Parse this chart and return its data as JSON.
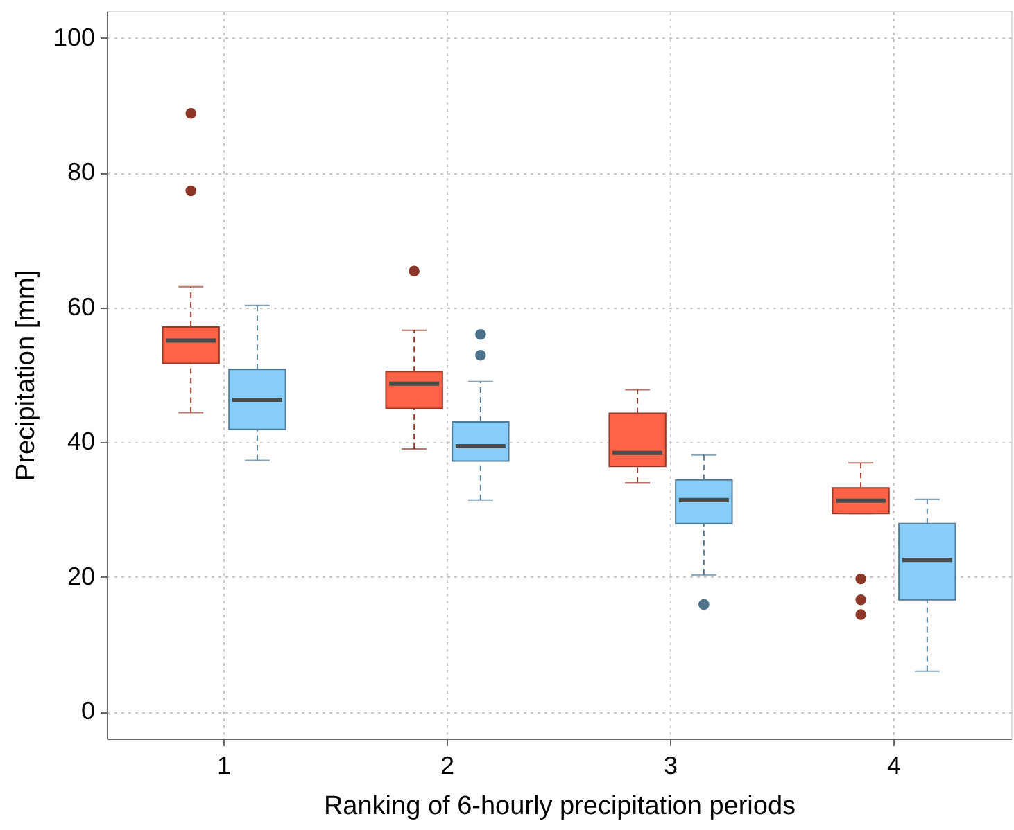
{
  "chart_data": {
    "type": "box",
    "xlabel": "Ranking of 6-hourly precipitation periods",
    "ylabel": "Precipitation [mm]",
    "categories": [
      "1",
      "2",
      "3",
      "4"
    ],
    "series": [
      {
        "color": "#ff6347",
        "boxes": [
          {
            "low": 44.4,
            "q1": 51.7,
            "median": 55.1,
            "q3": 57.1,
            "high": 63.1,
            "outliers": [
              88.8,
              77.3
            ]
          },
          {
            "low": 39.0,
            "q1": 45.0,
            "median": 48.7,
            "q3": 50.5,
            "high": 56.6,
            "outliers": [
              65.4
            ]
          },
          {
            "low": 34.0,
            "q1": 36.4,
            "median": 38.4,
            "q3": 44.3,
            "high": 47.8
          },
          {
            "low": 29.4,
            "q1": 29.4,
            "median": 31.3,
            "q3": 33.2,
            "high": 36.9,
            "outliers": [
              19.7,
              16.6,
              14.4
            ]
          }
        ]
      },
      {
        "color": "#87cefa",
        "boxes": [
          {
            "low": 37.3,
            "q1": 41.9,
            "median": 46.3,
            "q3": 50.8,
            "high": 60.3
          },
          {
            "low": 31.4,
            "q1": 37.2,
            "median": 39.4,
            "q3": 43.0,
            "high": 49.0,
            "outliers": [
              56.0,
              52.9
            ]
          },
          {
            "low": 20.3,
            "q1": 27.9,
            "median": 31.4,
            "q3": 34.4,
            "high": 38.1,
            "outliers": [
              15.9
            ]
          },
          {
            "low": 6.0,
            "q1": 16.6,
            "median": 22.5,
            "q3": 27.9,
            "high": 31.5
          }
        ]
      }
    ],
    "ylim": [
      -4,
      104
    ],
    "yticks": [
      0,
      20,
      40,
      60,
      80,
      100
    ],
    "grid": true
  }
}
